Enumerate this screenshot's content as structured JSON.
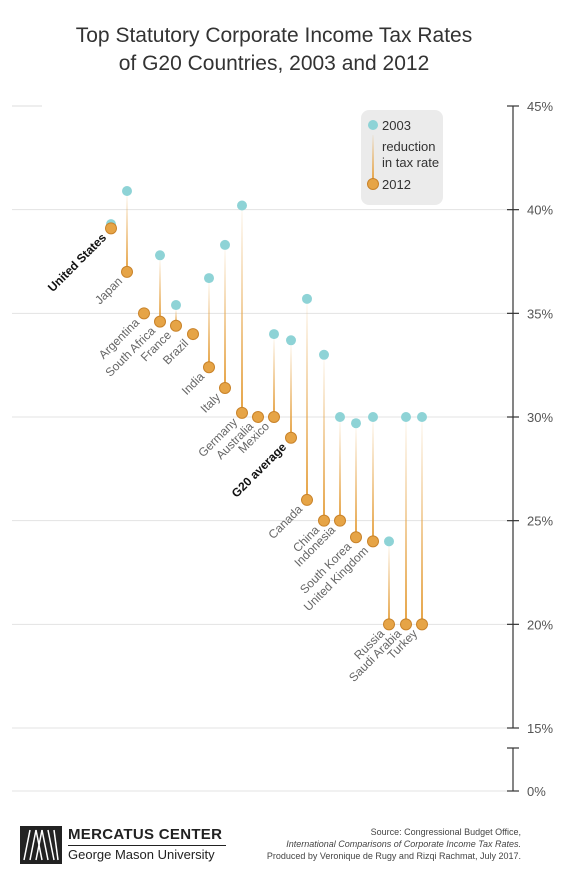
{
  "title_lines": [
    "Top Statutory Corporate Income Tax Rates",
    "of G20 Countries, 2003 and 2012"
  ],
  "chart_data": {
    "type": "scatter",
    "title": "Top Statutory Corporate Income Tax Rates of G20 Countries, 2003 and 2012",
    "y_ticks": [
      "45%",
      "40%",
      "35%",
      "30%",
      "25%",
      "20%",
      "15%",
      "0%"
    ],
    "ylim": [
      15,
      45
    ],
    "y_axis_break": true,
    "y_axis_zero_label": "0%",
    "legend": {
      "position": "top-right",
      "entries": [
        "2003",
        "reduction in tax rate",
        "2012"
      ]
    },
    "colors": {
      "y2003": "#8ed3d6",
      "y2012": "#e6a446",
      "reduction": "#e6a446"
    },
    "series": [
      {
        "name": "2003",
        "values": [
          39.3,
          40.9,
          null,
          37.8,
          35.4,
          34.0,
          36.7,
          38.3,
          40.2,
          30.0,
          34.0,
          33.7,
          35.7,
          33.0,
          30.0,
          29.7,
          30.0,
          24.0,
          30.0,
          30.0
        ]
      },
      {
        "name": "2012",
        "values": [
          39.1,
          37.0,
          35.0,
          34.6,
          34.4,
          34.0,
          32.4,
          31.4,
          30.2,
          30.0,
          30.0,
          29.0,
          26.0,
          25.0,
          25.0,
          24.2,
          24.0,
          20.0,
          20.0,
          20.0
        ]
      }
    ],
    "categories": [
      "United States",
      "Japan",
      "Argentina",
      "South Africa",
      "France",
      "Brazil",
      "India",
      "Italy",
      "Germany",
      "Australia",
      "Mexico",
      "G20 average",
      "Canada",
      "China",
      "Indonesia",
      "South Korea",
      "United Kingdom",
      "Russia",
      "Saudi Arabia",
      "Turkey"
    ],
    "highlighted_categories": [
      "United States",
      "G20 average"
    ]
  },
  "footer": {
    "source_line1": "Source: Congressional Budget Office,",
    "source_line2": "International Comparisons of Corporate Income Tax Rates.",
    "source_line3": "Produced by Veronique de Rugy and Rizqi Rachmat, July 2017.",
    "logo_name": "MERCATUS CENTER",
    "logo_sub": "George Mason University"
  }
}
